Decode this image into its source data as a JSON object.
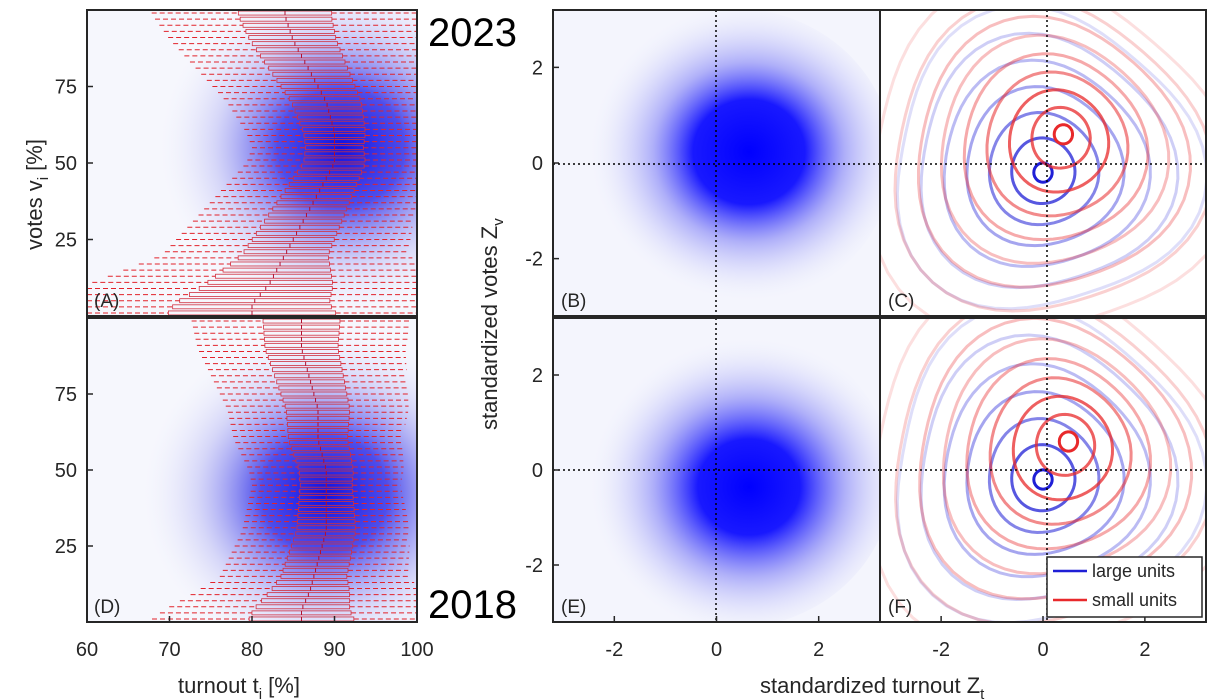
{
  "chart_data": [
    {
      "panel": "(A)",
      "type": "heatmap",
      "year_label": "2023",
      "description_series": "box plots of turnout per 2% vote bin overlaid on density",
      "xlim": [
        60,
        100
      ],
      "ylim": [
        0,
        100
      ],
      "x_ticks": [],
      "y_ticks": [
        "25",
        "50",
        "75"
      ],
      "density_peak": {
        "x": 91,
        "y": 55
      },
      "box_center": [
        [
          4,
          80
        ],
        [
          10,
          82
        ],
        [
          20,
          84
        ],
        [
          30,
          86
        ],
        [
          40,
          88
        ],
        [
          50,
          90
        ],
        [
          60,
          90
        ],
        [
          70,
          89
        ],
        [
          80,
          87
        ],
        [
          90,
          85
        ],
        [
          98,
          84
        ]
      ]
    },
    {
      "panel": "(D)",
      "type": "heatmap",
      "year_label": "2018",
      "xlim": [
        60,
        100
      ],
      "ylim": [
        0,
        100
      ],
      "x_ticks": [
        "60",
        "70",
        "80",
        "90",
        "100"
      ],
      "y_ticks": [
        "25",
        "50",
        "75"
      ],
      "density_peak": {
        "x": 89,
        "y": 42
      },
      "box_center": [
        [
          4,
          86
        ],
        [
          10,
          87
        ],
        [
          20,
          88
        ],
        [
          30,
          89
        ],
        [
          40,
          89
        ],
        [
          50,
          89
        ],
        [
          60,
          88
        ],
        [
          70,
          88
        ],
        [
          80,
          87
        ],
        [
          90,
          86
        ],
        [
          98,
          86
        ]
      ]
    },
    {
      "panel": "(B)",
      "type": "heatmap",
      "xlim": [
        -3.2,
        3.2
      ],
      "ylim": [
        -3.2,
        3.2
      ],
      "x_ticks": [],
      "y_ticks": [
        "-2",
        "0",
        "2"
      ],
      "density_peak": {
        "x": 0.3,
        "y": 0.1
      }
    },
    {
      "panel": "(E)",
      "type": "heatmap",
      "xlim": [
        -3.2,
        3.2
      ],
      "ylim": [
        -3.2,
        3.2
      ],
      "x_ticks": [
        "-2",
        "0",
        "2"
      ],
      "y_ticks": [
        "-2",
        "0",
        "2"
      ],
      "density_peak": {
        "x": 0.3,
        "y": -0.2
      }
    },
    {
      "panel": "(C)",
      "type": "line",
      "xlim": [
        -3.2,
        3.2
      ],
      "ylim": [
        -3.2,
        3.2
      ],
      "series": [
        {
          "name": "large units",
          "color": "#1f1fd6",
          "center": [
            0.0,
            -0.2
          ],
          "levels": 7
        },
        {
          "name": "small units",
          "color": "#e8292b",
          "center": [
            0.4,
            0.6
          ],
          "levels": 9
        }
      ]
    },
    {
      "panel": "(F)",
      "type": "line",
      "xlim": [
        -3.2,
        3.2
      ],
      "ylim": [
        -3.2,
        3.2
      ],
      "x_ticks": [
        "-2",
        "0",
        "2"
      ],
      "series": [
        {
          "name": "large units",
          "color": "#1f1fd6",
          "center": [
            0.0,
            -0.2
          ],
          "levels": 7
        },
        {
          "name": "small units",
          "color": "#e8292b",
          "center": [
            0.5,
            0.6
          ],
          "levels": 9
        }
      ]
    }
  ],
  "axes": {
    "left_ylabel": "votes v",
    "left_ylabel_sub": "i",
    "left_ylabel_tail": " [%]",
    "left_xlabel": "turnout t",
    "left_xlabel_sub": "i",
    "left_xlabel_tail": " [%]",
    "right_ylabel": "standardized votes Z",
    "right_ylabel_sub": "v",
    "right_xlabel": "standardized turnout Z",
    "right_xlabel_sub": "t"
  },
  "legend": {
    "items": [
      {
        "label": "large units",
        "color": "#1f1fd6"
      },
      {
        "label": "small units",
        "color": "#e8292b"
      }
    ]
  }
}
